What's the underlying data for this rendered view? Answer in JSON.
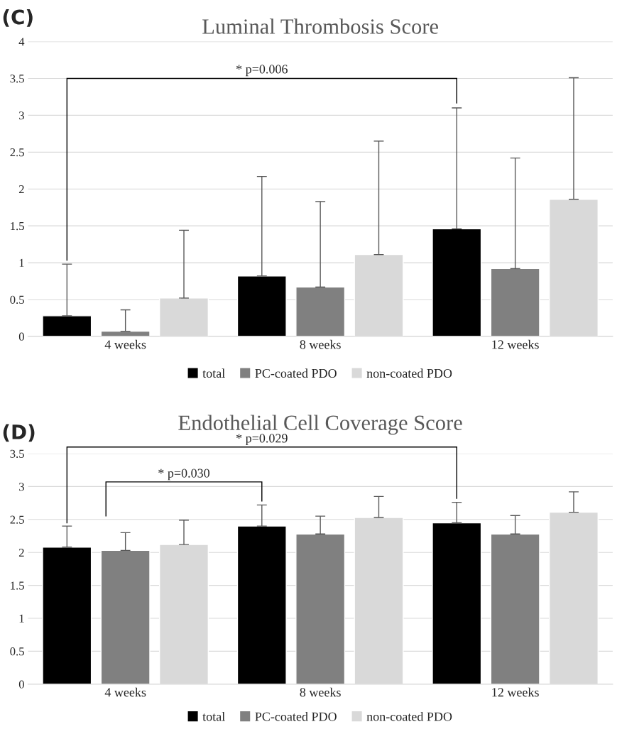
{
  "chart_data": [
    {
      "type": "bar",
      "title": "Luminal Thrombosis Score",
      "categories": [
        "4 weeks",
        "8 weeks",
        "12 weeks"
      ],
      "series": [
        {
          "name": "total",
          "color": "#000000",
          "values": [
            0.28,
            0.82,
            1.46
          ],
          "errors": [
            [
              0.28,
              0.98
            ],
            [
              0.82,
              2.17
            ],
            [
              1.46,
              3.1
            ]
          ]
        },
        {
          "name": "PC-coated PDO",
          "color": "#808080",
          "values": [
            0.07,
            0.67,
            0.92
          ],
          "errors": [
            [
              0.07,
              0.36
            ],
            [
              0.67,
              1.83
            ],
            [
              0.92,
              2.42
            ]
          ]
        },
        {
          "name": "non-coated PDO",
          "color": "#d9d9d9",
          "values": [
            0.52,
            1.11,
            1.86
          ],
          "errors": [
            [
              0.52,
              1.44
            ],
            [
              1.11,
              2.65
            ],
            [
              1.86,
              3.51
            ]
          ]
        }
      ],
      "ylim": [
        0,
        4
      ],
      "yticks": [
        0,
        0.5,
        1,
        1.5,
        2,
        2.5,
        3,
        3.5,
        4
      ],
      "grid": "y",
      "legend": "bottom",
      "annotations": [
        "(C)",
        "* p=0.006"
      ]
    },
    {
      "type": "bar",
      "title": "Endothelial Cell Coverage Score",
      "categories": [
        "4 weeks",
        "8 weeks",
        "12 weeks"
      ],
      "series": [
        {
          "name": "total",
          "color": "#000000",
          "values": [
            2.08,
            2.4,
            2.45
          ],
          "errors": [
            [
              2.08,
              2.4
            ],
            [
              2.4,
              2.72
            ],
            [
              2.45,
              2.76
            ]
          ]
        },
        {
          "name": "PC-coated PDO",
          "color": "#808080",
          "values": [
            2.03,
            2.28,
            2.28
          ],
          "errors": [
            [
              2.03,
              2.3
            ],
            [
              2.28,
              2.55
            ],
            [
              2.28,
              2.56
            ]
          ]
        },
        {
          "name": "non-coated PDO",
          "color": "#d9d9d9",
          "values": [
            2.12,
            2.53,
            2.61
          ],
          "errors": [
            [
              2.12,
              2.49
            ],
            [
              2.53,
              2.85
            ],
            [
              2.61,
              2.92
            ]
          ]
        }
      ],
      "ylim": [
        0,
        3.5
      ],
      "yticks": [
        0,
        0.5,
        1,
        1.5,
        2,
        2.5,
        3,
        3.5
      ],
      "grid": "y",
      "legend": "bottom",
      "annotations": [
        "(D)",
        "* p=0.029",
        "* p=0.030"
      ]
    }
  ]
}
